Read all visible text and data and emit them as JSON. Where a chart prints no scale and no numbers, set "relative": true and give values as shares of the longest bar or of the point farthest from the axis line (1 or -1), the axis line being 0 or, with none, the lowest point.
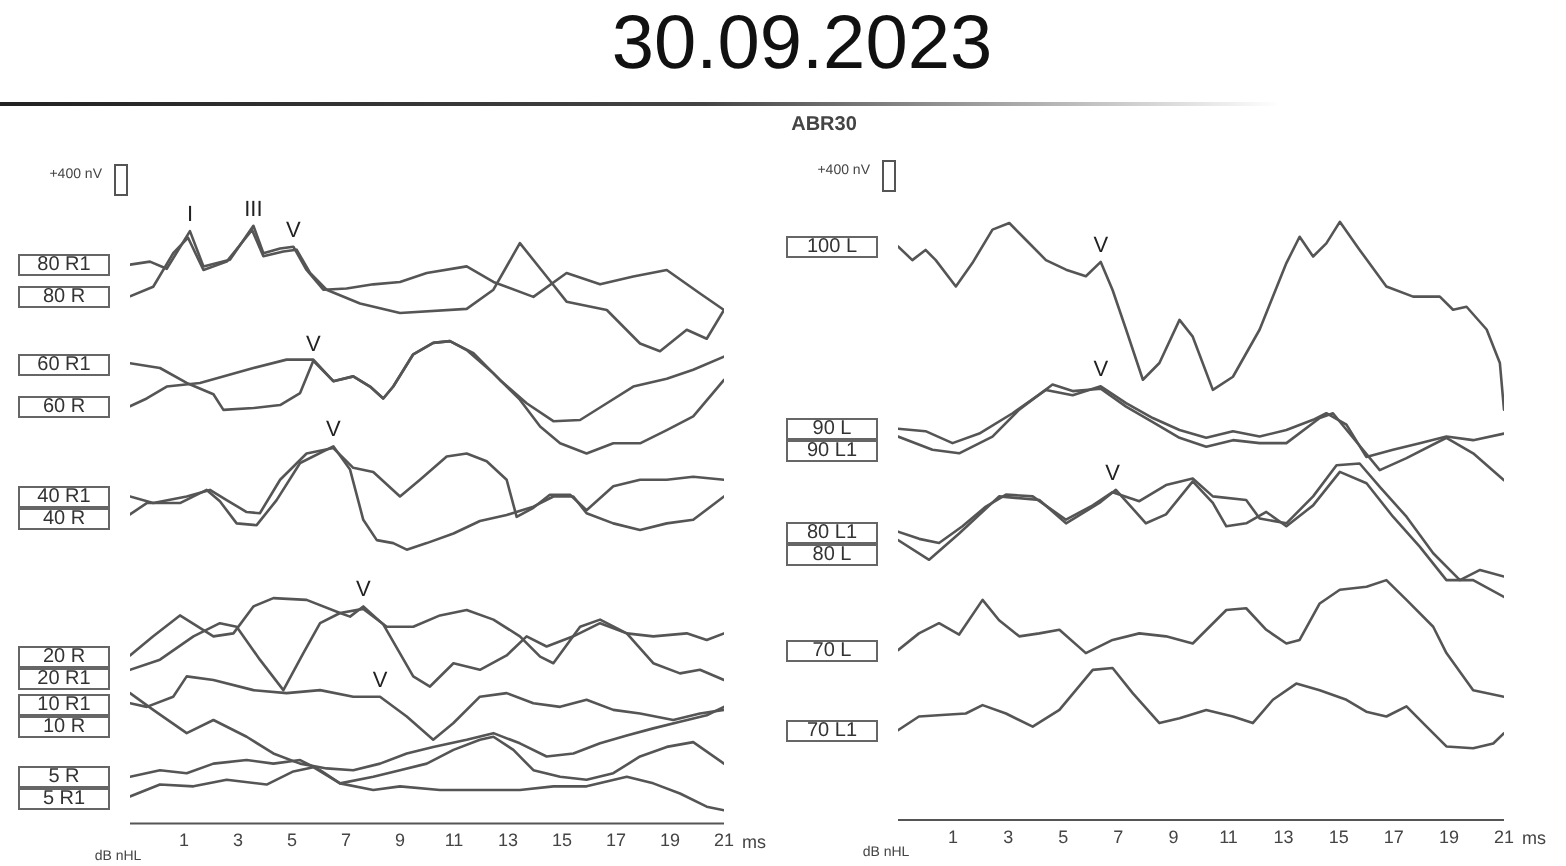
{
  "chart_data": [
    {
      "type": "line",
      "title": "30.09.2023",
      "xlabel": "ms",
      "relative": true,
      "xlim": [
        -1,
        21
      ],
      "xticks": [
        1,
        3,
        5,
        7,
        9,
        11,
        13,
        15,
        17,
        19,
        21
      ],
      "annotations": [
        "+400 nV",
        "dB nHL",
        {
          "text": "I",
          "x": 1.22,
          "y": 0.991
        },
        {
          "text": "III",
          "x": 3.57,
          "y": 1.0
        },
        {
          "text": "V",
          "x": 5.05,
          "y": 0.965
        },
        {
          "text": "V",
          "x": 5.79,
          "y": 0.774
        },
        {
          "text": "V",
          "x": 6.53,
          "y": 0.631
        },
        {
          "text": "V",
          "x": 7.64,
          "y": 0.363
        },
        {
          "text": "V",
          "x": 8.26,
          "y": 0.212
        }
      ],
      "series": [
        {
          "name": "80 R1",
          "color": "#555555",
          "x": [
            -1,
            -0.26,
            0.36,
            1.22,
            1.72,
            2.7,
            3.57,
            3.94,
            4.56,
            5.05,
            5.54,
            6.16,
            7.02,
            8.01,
            9.0,
            9.99,
            11.47,
            12.46,
            13.94,
            15.17,
            16.41,
            17.64,
            18.88,
            20.1,
            21
          ],
          "values": [
            0.935,
            0.94,
            0.928,
            0.991,
            0.932,
            0.943,
            1.0,
            0.954,
            0.962,
            0.965,
            0.926,
            0.893,
            0.895,
            0.902,
            0.906,
            0.921,
            0.932,
            0.906,
            0.881,
            0.921,
            0.902,
            0.915,
            0.926,
            0.887,
            0.859
          ]
        },
        {
          "name": "80 R",
          "color": "#555555",
          "x": [
            -1,
            -0.14,
            0.6,
            1.15,
            1.72,
            2.58,
            3.52,
            3.94,
            4.68,
            5.17,
            5.67,
            6.28,
            7.52,
            9.0,
            11.47,
            12.46,
            13.44,
            14.43,
            15.17,
            16.66,
            17.89,
            18.63,
            19.62,
            20.36,
            21
          ],
          "values": [
            0.882,
            0.898,
            0.954,
            0.98,
            0.926,
            0.94,
            0.993,
            0.949,
            0.957,
            0.96,
            0.921,
            0.893,
            0.87,
            0.854,
            0.861,
            0.893,
            0.971,
            0.915,
            0.873,
            0.859,
            0.803,
            0.79,
            0.826,
            0.811,
            0.859
          ]
        },
        {
          "name": "60 R1",
          "color": "#555555",
          "x": [
            -1,
            0.11,
            1.1,
            2.09,
            2.46,
            3.57,
            4.56,
            5.3,
            5.79,
            6.53,
            7.27,
            7.89,
            8.38,
            8.75,
            9.49,
            10.23,
            10.85,
            11.72,
            12.7,
            13.69,
            14.68,
            15.67,
            16.66,
            17.64,
            18.88,
            19.86,
            21
          ],
          "values": [
            0.77,
            0.762,
            0.737,
            0.718,
            0.692,
            0.695,
            0.7,
            0.72,
            0.774,
            0.74,
            0.748,
            0.731,
            0.711,
            0.731,
            0.785,
            0.804,
            0.807,
            0.787,
            0.742,
            0.703,
            0.673,
            0.675,
            0.703,
            0.731,
            0.744,
            0.759,
            0.781
          ]
        },
        {
          "name": "60 R",
          "color": "#555555",
          "x": [
            -1,
            -0.38,
            0.36,
            1.59,
            3.57,
            4.8,
            5.79,
            6.53,
            7.27,
            7.89,
            8.38,
            8.75,
            9.49,
            10.23,
            10.85,
            11.47,
            12.46,
            13.44,
            14.19,
            14.93,
            15.91,
            16.9,
            17.89,
            18.88,
            19.86,
            21
          ],
          "values": [
            0.698,
            0.711,
            0.731,
            0.737,
            0.762,
            0.776,
            0.776,
            0.74,
            0.748,
            0.731,
            0.711,
            0.731,
            0.785,
            0.804,
            0.807,
            0.792,
            0.753,
            0.709,
            0.664,
            0.636,
            0.619,
            0.636,
            0.636,
            0.658,
            0.681,
            0.742
          ]
        },
        {
          "name": "40 R1",
          "color": "#555555",
          "x": [
            -1,
            -0.14,
            1.1,
            1.96,
            2.58,
            3.32,
            3.81,
            4.56,
            5.54,
            6.53,
            7.27,
            8.01,
            9.0,
            9.74,
            10.73,
            11.47,
            12.21,
            12.95,
            13.32,
            13.94,
            14.55,
            15.3,
            15.91,
            16.9,
            17.89,
            18.88,
            19.86,
            21
          ],
          "values": [
            0.547,
            0.536,
            0.547,
            0.558,
            0.541,
            0.521,
            0.519,
            0.575,
            0.619,
            0.628,
            0.595,
            0.588,
            0.547,
            0.575,
            0.614,
            0.619,
            0.606,
            0.575,
            0.513,
            0.528,
            0.55,
            0.55,
            0.524,
            0.564,
            0.575,
            0.575,
            0.58,
            0.575
          ]
        },
        {
          "name": "40 R",
          "color": "#555555",
          "x": [
            -1,
            -0.38,
            0.85,
            1.84,
            2.33,
            2.95,
            3.69,
            4.43,
            5.3,
            6.53,
            7.15,
            7.64,
            8.14,
            8.75,
            9.25,
            9.99,
            10.98,
            11.96,
            12.95,
            13.94,
            14.68,
            15.42,
            15.91,
            16.9,
            17.89,
            18.88,
            19.86,
            21
          ],
          "values": [
            0.517,
            0.536,
            0.536,
            0.558,
            0.539,
            0.502,
            0.499,
            0.541,
            0.603,
            0.631,
            0.592,
            0.508,
            0.474,
            0.469,
            0.458,
            0.469,
            0.485,
            0.506,
            0.516,
            0.53,
            0.547,
            0.547,
            0.519,
            0.502,
            0.491,
            0.502,
            0.508,
            0.547
          ]
        },
        {
          "name": "20 R",
          "color": "#555555",
          "x": [
            -1,
            -0.14,
            0.85,
            2.09,
            2.83,
            3.57,
            4.31,
            5.54,
            6.78,
            7.15,
            7.64,
            8.38,
            9.49,
            10.11,
            10.98,
            11.96,
            12.95,
            13.69,
            14.43,
            15.42,
            16.41,
            17.4,
            18.38,
            19.37,
            20.11,
            21
          ],
          "values": [
            0.281,
            0.313,
            0.348,
            0.313,
            0.318,
            0.363,
            0.377,
            0.374,
            0.352,
            0.346,
            0.363,
            0.333,
            0.246,
            0.229,
            0.268,
            0.257,
            0.281,
            0.313,
            0.296,
            0.313,
            0.335,
            0.318,
            0.268,
            0.251,
            0.257,
            0.24
          ]
        },
        {
          "name": "20 R1",
          "color": "#555555",
          "x": [
            -1,
            0.11,
            1.35,
            2.33,
            2.95,
            3.81,
            4.68,
            5.42,
            6.04,
            6.78,
            7.64,
            8.51,
            9.49,
            10.48,
            11.47,
            12.46,
            13.44,
            14.19,
            14.68,
            15.67,
            16.41,
            17.4,
            18.38,
            19.62,
            20.36,
            21
          ],
          "values": [
            0.257,
            0.274,
            0.313,
            0.335,
            0.329,
            0.274,
            0.223,
            0.285,
            0.335,
            0.352,
            0.359,
            0.329,
            0.329,
            0.348,
            0.357,
            0.341,
            0.313,
            0.279,
            0.268,
            0.329,
            0.341,
            0.318,
            0.313,
            0.318,
            0.307,
            0.318
          ]
        },
        {
          "name": "10 R1",
          "color": "#555555",
          "x": [
            -1,
            -0.38,
            0.6,
            1.1,
            2.09,
            3.57,
            4.8,
            6.04,
            7.27,
            8.26,
            9.25,
            10.23,
            10.98,
            11.96,
            12.95,
            13.94,
            14.93,
            15.91,
            16.9,
            17.89,
            19.12,
            20.11,
            21
          ],
          "values": [
            0.201,
            0.195,
            0.212,
            0.246,
            0.24,
            0.223,
            0.218,
            0.223,
            0.212,
            0.212,
            0.179,
            0.14,
            0.168,
            0.212,
            0.218,
            0.201,
            0.195,
            0.207,
            0.19,
            0.184,
            0.173,
            0.184,
            0.19
          ]
        },
        {
          "name": "10 R",
          "color": "#555555",
          "x": [
            -1,
            -0.14,
            1.1,
            2.09,
            3.32,
            4.31,
            5.3,
            6.28,
            7.27,
            8.26,
            9.25,
            10.23,
            11.47,
            12.46,
            13.44,
            14.43,
            15.42,
            16.41,
            17.4,
            18.38,
            19.37,
            20.36,
            21
          ],
          "values": [
            0.218,
            0.19,
            0.151,
            0.173,
            0.145,
            0.117,
            0.1,
            0.092,
            0.089,
            0.1,
            0.117,
            0.128,
            0.14,
            0.151,
            0.134,
            0.112,
            0.117,
            0.134,
            0.147,
            0.159,
            0.17,
            0.181,
            0.195
          ]
        },
        {
          "name": "5 R",
          "color": "#555555",
          "x": [
            -1,
            0.11,
            1.1,
            2.09,
            3.32,
            4.31,
            5.3,
            6.04,
            6.78,
            8.01,
            9.0,
            9.99,
            10.98,
            11.96,
            12.46,
            13.2,
            13.94,
            14.93,
            15.91,
            16.9,
            17.89,
            18.88,
            19.86,
            21
          ],
          "values": [
            0.078,
            0.089,
            0.084,
            0.1,
            0.106,
            0.1,
            0.106,
            0.089,
            0.067,
            0.078,
            0.089,
            0.1,
            0.123,
            0.14,
            0.145,
            0.123,
            0.089,
            0.078,
            0.073,
            0.084,
            0.112,
            0.128,
            0.136,
            0.1
          ]
        },
        {
          "name": "5 R1",
          "color": "#555555",
          "x": [
            -1,
            0.11,
            1.35,
            2.58,
            4.06,
            5.05,
            5.79,
            6.78,
            8.01,
            9.0,
            10.48,
            11.96,
            13.44,
            14.68,
            15.91,
            17.4,
            18.38,
            19.37,
            20.36,
            21
          ],
          "values": [
            0.045,
            0.065,
            0.062,
            0.073,
            0.065,
            0.087,
            0.094,
            0.067,
            0.056,
            0.062,
            0.056,
            0.056,
            0.056,
            0.062,
            0.062,
            0.078,
            0.067,
            0.05,
            0.028,
            0.022
          ]
        }
      ]
    },
    {
      "type": "line",
      "subtitle": "ABR30",
      "xlabel": "ms",
      "relative": true,
      "xlim": [
        -1,
        21
      ],
      "xticks": [
        1,
        3,
        5,
        7,
        9,
        11,
        13,
        15,
        17,
        19,
        21
      ],
      "annotations": [
        "+400 nV",
        "dB nHL",
        {
          "text": "V",
          "x": 6.36,
          "y": 0.933
        },
        {
          "text": "V",
          "x": 6.36,
          "y": 0.725
        },
        {
          "text": "V",
          "x": 6.79,
          "y": 0.552
        }
      ],
      "series": [
        {
          "name": "100 L",
          "color": "#555555",
          "x": [
            -1,
            -0.48,
            0,
            0.37,
            1.1,
            1.7,
            2.43,
            3.04,
            3.64,
            4.37,
            5.1,
            5.82,
            6.36,
            6.79,
            7.28,
            7.89,
            8.49,
            9.22,
            9.7,
            10.43,
            11.16,
            12.13,
            13.1,
            13.58,
            14.07,
            14.55,
            15.04,
            15.76,
            16.73,
            17.7,
            18.67,
            19.15,
            19.64,
            20.37,
            20.85,
            21
          ],
          "values": [
            0.959,
            0.936,
            0.953,
            0.936,
            0.892,
            0.931,
            0.987,
            0.998,
            0.97,
            0.936,
            0.92,
            0.909,
            0.933,
            0.886,
            0.82,
            0.736,
            0.764,
            0.836,
            0.808,
            0.719,
            0.741,
            0.82,
            0.931,
            0.975,
            0.942,
            0.964,
            1.0,
            0.953,
            0.892,
            0.875,
            0.875,
            0.853,
            0.858,
            0.82,
            0.764,
            0.686
          ]
        },
        {
          "name": "90 L",
          "color": "#555555",
          "x": [
            -1,
            0,
            0.98,
            1.95,
            3.16,
            4.37,
            5.34,
            6.36,
            7.28,
            8.25,
            9.22,
            10.19,
            11.16,
            12.13,
            13.1,
            14.07,
            14.55,
            15.28,
            16.0,
            16.97,
            17.94,
            18.91,
            19.88,
            21
          ],
          "values": [
            0.654,
            0.65,
            0.63,
            0.646,
            0.68,
            0.719,
            0.71,
            0.725,
            0.697,
            0.672,
            0.652,
            0.639,
            0.65,
            0.641,
            0.652,
            0.669,
            0.68,
            0.661,
            0.607,
            0.619,
            0.63,
            0.641,
            0.635,
            0.646
          ]
        },
        {
          "name": "90 L1",
          "color": "#555555",
          "x": [
            -1,
            0.25,
            1.22,
            2.43,
            3.4,
            4.61,
            5.34,
            6.36,
            7.28,
            8.25,
            9.22,
            10.19,
            11.16,
            12.13,
            13.1,
            14.31,
            14.79,
            15.52,
            16.49,
            17.46,
            18.91,
            19.88,
            21
          ],
          "values": [
            0.641,
            0.619,
            0.613,
            0.641,
            0.686,
            0.728,
            0.717,
            0.721,
            0.691,
            0.665,
            0.639,
            0.624,
            0.635,
            0.63,
            0.63,
            0.672,
            0.68,
            0.639,
            0.585,
            0.605,
            0.639,
            0.613,
            0.568
          ]
        },
        {
          "name": "80 L1",
          "color": "#555555",
          "x": [
            -1,
            -0.23,
            0.49,
            1.34,
            2.19,
            2.92,
            3.89,
            5.1,
            6.07,
            6.79,
            7.76,
            8.73,
            9.7,
            10.43,
            11.64,
            12.13,
            13.1,
            14.07,
            14.92,
            15.76,
            16.49,
            17.46,
            18.43,
            19.4,
            20.13,
            21
          ],
          "values": [
            0.482,
            0.47,
            0.463,
            0.491,
            0.524,
            0.544,
            0.541,
            0.502,
            0.526,
            0.548,
            0.533,
            0.56,
            0.571,
            0.541,
            0.535,
            0.504,
            0.496,
            0.541,
            0.593,
            0.596,
            0.557,
            0.507,
            0.446,
            0.401,
            0.418,
            0.407
          ]
        },
        {
          "name": "80 L",
          "color": "#555555",
          "x": [
            -1,
            0.13,
            1.22,
            2.67,
            4.13,
            5.1,
            6.31,
            6.91,
            8.0,
            8.73,
            9.7,
            10.43,
            10.92,
            11.64,
            12.37,
            13.1,
            14.07,
            15.04,
            16.01,
            16.97,
            17.94,
            18.91,
            19.88,
            21
          ],
          "values": [
            0.468,
            0.435,
            0.479,
            0.541,
            0.535,
            0.496,
            0.53,
            0.552,
            0.496,
            0.511,
            0.566,
            0.53,
            0.491,
            0.496,
            0.515,
            0.491,
            0.526,
            0.582,
            0.563,
            0.507,
            0.457,
            0.401,
            0.401,
            0.373
          ]
        },
        {
          "name": "70 L",
          "color": "#555555",
          "x": [
            -1,
            -0.24,
            0.49,
            1.22,
            2.07,
            2.67,
            3.4,
            4.13,
            4.86,
            5.82,
            6.79,
            7.76,
            8.73,
            9.7,
            10.92,
            11.64,
            12.37,
            13.1,
            13.58,
            14.31,
            15.04,
            16.01,
            16.73,
            17.46,
            18.43,
            18.91,
            19.88,
            21
          ],
          "values": [
            0.284,
            0.312,
            0.329,
            0.31,
            0.368,
            0.334,
            0.307,
            0.312,
            0.318,
            0.279,
            0.301,
            0.312,
            0.307,
            0.295,
            0.351,
            0.354,
            0.318,
            0.295,
            0.301,
            0.362,
            0.385,
            0.39,
            0.401,
            0.368,
            0.323,
            0.279,
            0.217,
            0.206
          ]
        },
        {
          "name": "70 L1",
          "color": "#555555",
          "x": [
            -1,
            -0.24,
            0.73,
            1.46,
            2.07,
            2.92,
            3.89,
            4.86,
            6.07,
            6.79,
            7.52,
            8.49,
            9.22,
            10.19,
            11.16,
            11.88,
            12.61,
            13.46,
            14.31,
            15.28,
            16.0,
            16.73,
            17.46,
            18.19,
            18.91,
            19.88,
            20.61,
            21
          ],
          "values": [
            0.15,
            0.173,
            0.176,
            0.178,
            0.192,
            0.178,
            0.156,
            0.184,
            0.251,
            0.254,
            0.212,
            0.162,
            0.17,
            0.184,
            0.173,
            0.162,
            0.201,
            0.228,
            0.217,
            0.201,
            0.181,
            0.173,
            0.19,
            0.156,
            0.123,
            0.12,
            0.128,
            0.145
          ]
        }
      ]
    }
  ]
}
